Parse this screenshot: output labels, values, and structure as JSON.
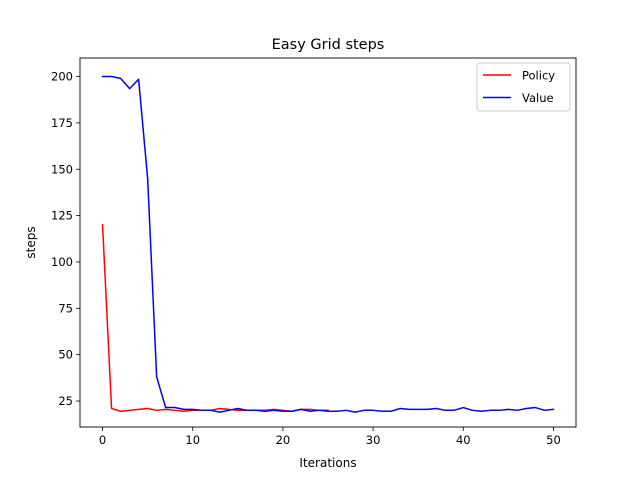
{
  "chart_data": {
    "type": "line",
    "title": "Easy Grid steps",
    "xlabel": "Iterations",
    "ylabel": "steps",
    "xlim": [
      -2.5,
      52.5
    ],
    "ylim": [
      11,
      210
    ],
    "xticks": [
      0,
      10,
      20,
      30,
      40,
      50
    ],
    "yticks": [
      25,
      50,
      75,
      100,
      125,
      150,
      175,
      200
    ],
    "grid": false,
    "legend_position": "top-right",
    "series": [
      {
        "name": "Policy",
        "color": "#ff0000",
        "x": [
          0,
          1,
          2,
          3,
          4,
          5,
          6,
          7,
          8,
          9,
          10,
          11,
          12,
          13,
          14,
          15,
          16,
          17,
          18,
          19,
          20,
          21,
          22,
          23,
          24,
          25
        ],
        "y": [
          120,
          21,
          19.5,
          20,
          20.5,
          21,
          20,
          20.5,
          20,
          19.5,
          20,
          20,
          20,
          21,
          20.5,
          20,
          20,
          20,
          20,
          20.5,
          20,
          19.5,
          20.5,
          20.5,
          20,
          20
        ]
      },
      {
        "name": "Value",
        "color": "#0000ff",
        "x": [
          0,
          1,
          2,
          3,
          4,
          5,
          6,
          7,
          8,
          9,
          10,
          11,
          12,
          13,
          14,
          15,
          16,
          17,
          18,
          19,
          20,
          21,
          22,
          23,
          24,
          25,
          26,
          27,
          28,
          29,
          30,
          31,
          32,
          33,
          34,
          35,
          36,
          37,
          38,
          39,
          40,
          41,
          42,
          43,
          44,
          45,
          46,
          47,
          48,
          49,
          50
        ],
        "y": [
          200,
          200,
          199,
          193.5,
          198.5,
          145,
          38,
          21.5,
          21.5,
          20.5,
          20.5,
          20,
          20,
          19,
          20,
          21,
          20,
          20,
          19.5,
          20,
          19.5,
          19.5,
          20.5,
          19.5,
          20,
          19.5,
          19.5,
          20,
          19,
          20,
          20,
          19.5,
          19.5,
          21,
          20.5,
          20.5,
          20.5,
          21,
          20,
          20,
          21.5,
          20,
          19.5,
          20,
          20,
          20.5,
          20,
          21,
          21.5,
          20,
          20.5
        ]
      }
    ]
  }
}
